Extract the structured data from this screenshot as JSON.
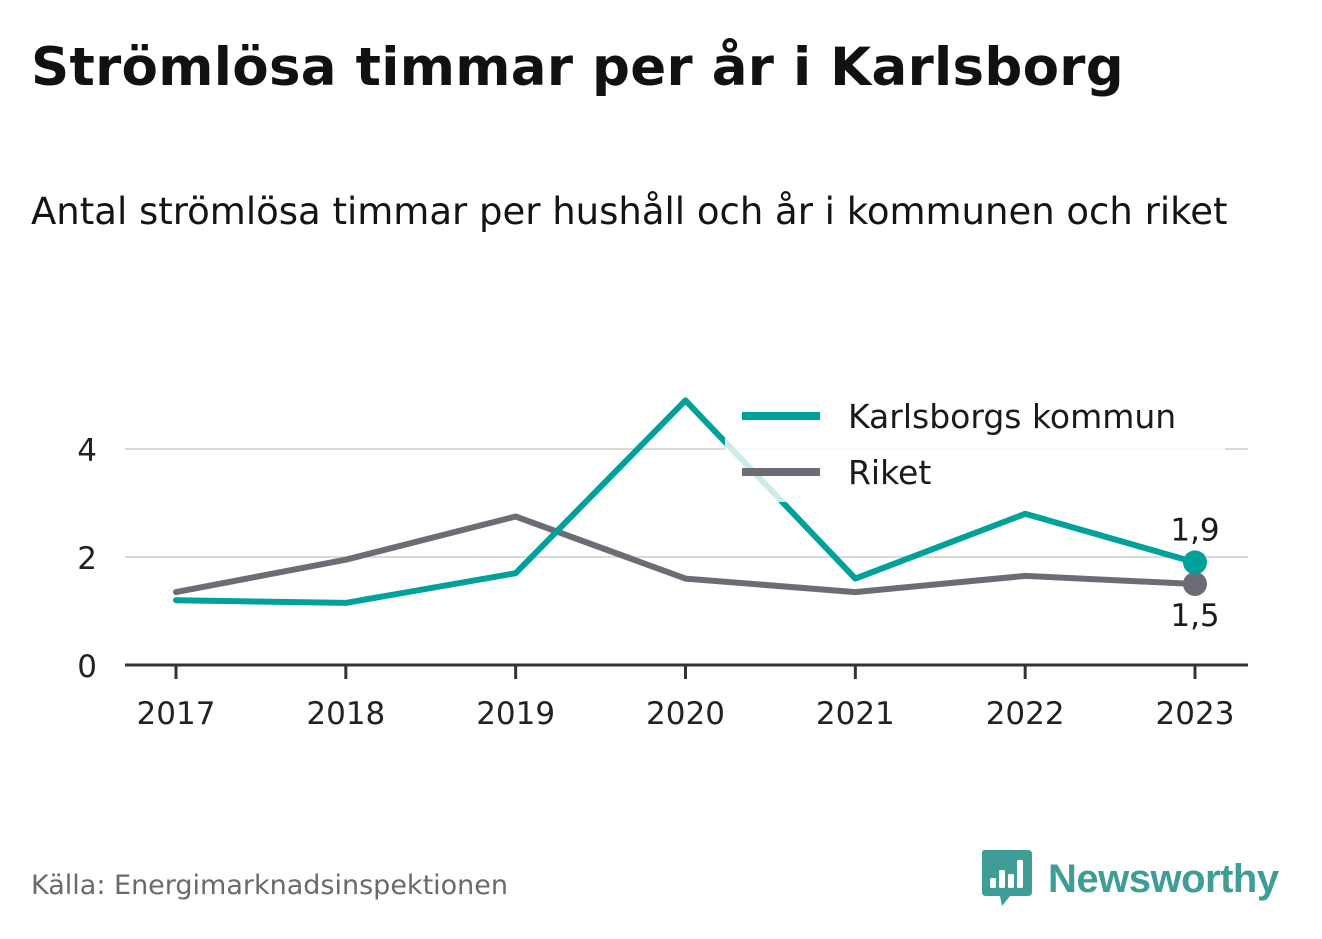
{
  "title": "Strömlösa timmar per år i Karlsborg",
  "subtitle": "Antal strömlösa timmar per hushåll och år i kommunen och riket",
  "source": "Källa: Energimarknadsinspektionen",
  "brand": {
    "name": "Newsworthy",
    "icon": "newsworthy-logo-icon"
  },
  "colors": {
    "karlsborg": "#00a19a",
    "riket": "#6d6c74",
    "grid": "#d9d9d9",
    "axis": "#333333",
    "brand": "#3f9d97"
  },
  "chart_data": {
    "type": "line",
    "categories": [
      "2017",
      "2018",
      "2019",
      "2020",
      "2021",
      "2022",
      "2023"
    ],
    "series": [
      {
        "name": "Karlsborgs kommun",
        "color": "#00a19a",
        "values": [
          1.2,
          1.15,
          1.7,
          4.9,
          1.6,
          2.8,
          1.9
        ],
        "end_label": "1,9"
      },
      {
        "name": "Riket",
        "color": "#6d6c74",
        "values": [
          1.35,
          1.95,
          2.75,
          1.6,
          1.35,
          1.65,
          1.5
        ],
        "end_label": "1,5"
      }
    ],
    "yticks": [
      {
        "value": 0,
        "label": "0"
      },
      {
        "value": 2,
        "label": "2"
      },
      {
        "value": 4,
        "label": "4"
      }
    ],
    "ylim": [
      0,
      5
    ],
    "grid": true,
    "legend": "top-right"
  }
}
